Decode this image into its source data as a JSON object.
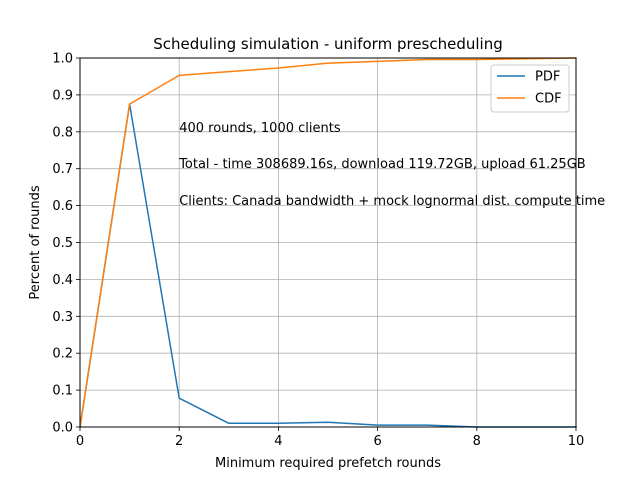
{
  "chart_data": {
    "type": "line",
    "title": "Scheduling simulation - uniform prescheduling",
    "xlabel": "Minimum required prefetch rounds",
    "ylabel": "Percent of rounds",
    "xlim": [
      0,
      10
    ],
    "ylim": [
      0,
      1.0
    ],
    "xticks": [
      "0",
      "2",
      "4",
      "6",
      "8",
      "10"
    ],
    "yticks": [
      "0.0",
      "0.1",
      "0.2",
      "0.3",
      "0.4",
      "0.5",
      "0.6",
      "0.7",
      "0.8",
      "0.9",
      "1.0"
    ],
    "grid": true,
    "legend_placement": "top-right",
    "x": [
      0,
      1,
      2,
      3,
      4,
      5,
      6,
      7,
      8,
      9,
      10
    ],
    "series": [
      {
        "name": "PDF",
        "color": "#1f77b4",
        "values": [
          0.0,
          0.875,
          0.078,
          0.01,
          0.01,
          0.013,
          0.005,
          0.005,
          0.0,
          0.0,
          0.0
        ]
      },
      {
        "name": "CDF",
        "color": "#ff7f0e",
        "values": [
          0.0,
          0.875,
          0.953,
          0.963,
          0.973,
          0.986,
          0.991,
          0.996,
          0.996,
          0.998,
          1.0
        ]
      }
    ],
    "annotations": [
      "400 rounds, 1000 clients",
      "Total - time 308689.16s, download 119.72GB, upload 61.25GB",
      "Clients: Canada bandwidth + mock lognormal dist. compute time"
    ]
  }
}
